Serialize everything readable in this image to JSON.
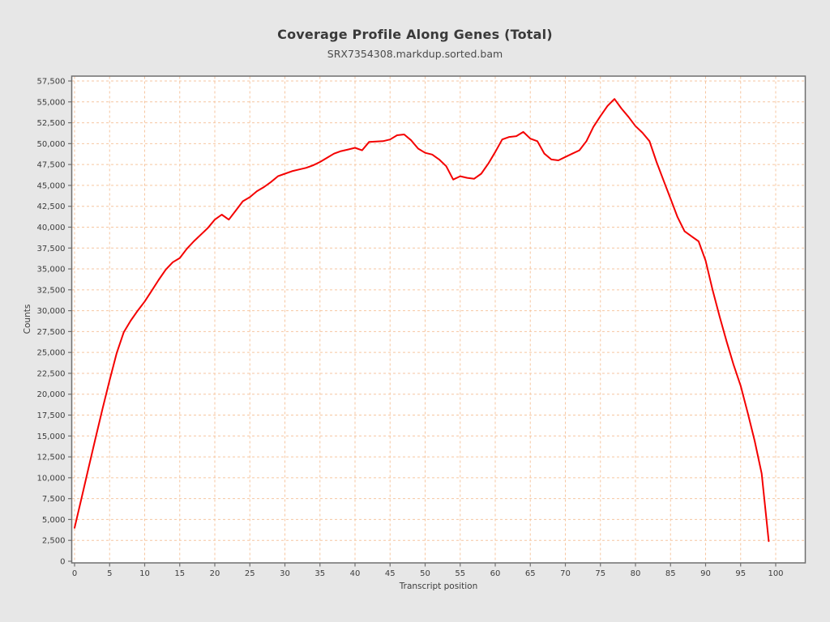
{
  "chart_data": {
    "type": "line",
    "title": "Coverage Profile Along Genes (Total)",
    "subtitle": "SRX7354308.markdup.sorted.bam",
    "xlabel": "Transcript position",
    "ylabel": "Counts",
    "xlim": [
      0,
      100
    ],
    "ylim": [
      0,
      57500
    ],
    "x_tick_step": 5,
    "y_tick_step": 2500,
    "x_ticks": [
      0,
      5,
      10,
      15,
      20,
      25,
      30,
      35,
      40,
      45,
      50,
      55,
      60,
      65,
      70,
      75,
      80,
      85,
      90,
      95,
      100
    ],
    "y_ticks": [
      0,
      2500,
      5000,
      7500,
      10000,
      12500,
      15000,
      17500,
      20000,
      22500,
      25000,
      27500,
      30000,
      32500,
      35000,
      37500,
      40000,
      42500,
      45000,
      47500,
      50000,
      52500,
      55000,
      57500
    ],
    "grid": {
      "visible": true,
      "style": "dashed"
    },
    "legend_position": "none",
    "series": [
      {
        "name": "SRX7354308.markdup.sorted.bam",
        "x_range": [
          0,
          99
        ],
        "values": [
          4000,
          7600,
          11200,
          14800,
          18300,
          21700,
          24900,
          27400,
          28800,
          30000,
          31100,
          32400,
          33700,
          34900,
          35800,
          36300,
          37400,
          38300,
          39100,
          39900,
          40900,
          41500,
          40900,
          42000,
          43100,
          43600,
          44300,
          44800,
          45400,
          46100,
          46400,
          46700,
          46900,
          47100,
          47400,
          47800,
          48300,
          48800,
          49100,
          49300,
          49500,
          49200,
          50200,
          50250,
          50300,
          50500,
          51000,
          51100,
          50400,
          49400,
          48900,
          48700,
          48100,
          47300,
          45700,
          46100,
          45900,
          45800,
          46400,
          47600,
          49000,
          50500,
          50800,
          50900,
          51400,
          50600,
          50300,
          48800,
          48100,
          48000,
          48400,
          48800,
          49200,
          50300,
          52000,
          53300,
          54500,
          55350,
          54200,
          53200,
          52100,
          51300,
          50300,
          47800,
          45600,
          43400,
          41200,
          39500,
          38900,
          38300,
          36000,
          32500,
          29300,
          26300,
          23500,
          21000,
          17800,
          14400,
          10500,
          2400
        ]
      }
    ],
    "colors": {
      "page_background": "#e7e7e7",
      "plot_background": "#ffffff",
      "plot_border": "#6f6f6f",
      "gridline": "#f6c6a0",
      "line": "#f40000",
      "tick": "#6f6f6f",
      "text": "#3d3d3d"
    }
  }
}
